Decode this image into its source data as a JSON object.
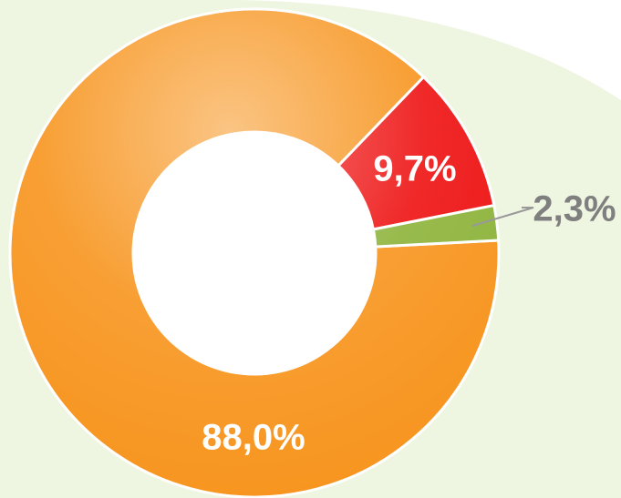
{
  "chart_data": {
    "type": "donut",
    "values": [
      88.0,
      9.7,
      2.3
    ],
    "value_labels": [
      "88,0%",
      "9,7%",
      "2,3%"
    ],
    "colors": [
      "#f7941d",
      "#ee1111",
      "#8db33a"
    ]
  }
}
